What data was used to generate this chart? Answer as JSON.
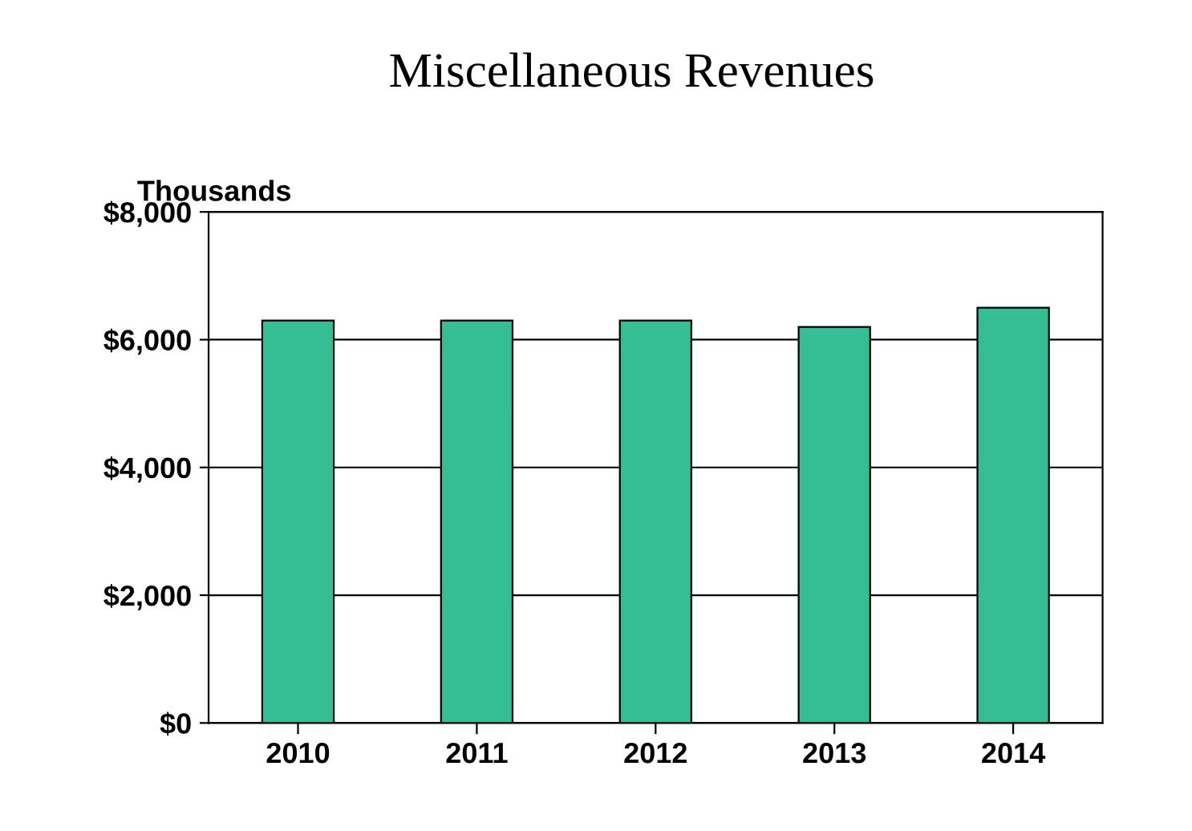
{
  "chart_data": {
    "type": "bar",
    "title": "Miscellaneous Revenues",
    "ylabel": "Thousands",
    "categories": [
      "2010",
      "2011",
      "2012",
      "2013",
      "2014"
    ],
    "values": [
      6300,
      6300,
      6300,
      6200,
      6500
    ],
    "color": "#35bd93",
    "ylim": [
      0,
      8000
    ],
    "yticks": [
      {
        "value": 0,
        "label": "$0"
      },
      {
        "value": 2000,
        "label": "$2,000"
      },
      {
        "value": 4000,
        "label": "$4,000"
      },
      {
        "value": 6000,
        "label": "$6,000"
      },
      {
        "value": 8000,
        "label": "$8,000"
      }
    ],
    "grid": "y"
  }
}
